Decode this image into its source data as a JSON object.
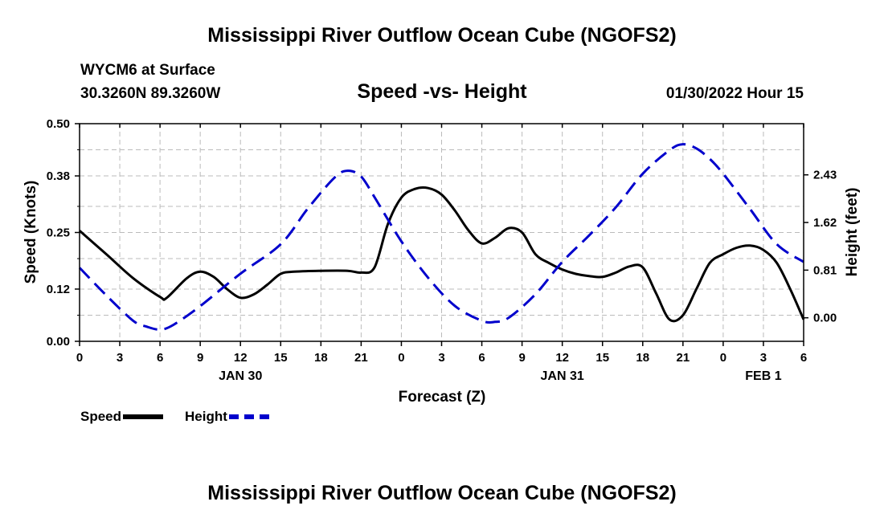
{
  "page": {
    "title": "Mississippi River Outflow Ocean Cube (NGOFS2)",
    "footer_title": "Mississippi River Outflow Ocean Cube (NGOFS2)",
    "station": "WYCM6 at Surface",
    "coordinates": "30.3260N  89.3260W",
    "subtitle": "Speed -vs- Height",
    "datetime": "01/30/2022 Hour 15"
  },
  "chart_data": {
    "type": "line",
    "title": "Speed -vs- Height",
    "xlabel": "Forecast (Z)",
    "ylabel_left": "Speed (Knots)",
    "ylabel_right": "Height (feet)",
    "x_unit": "hours from 00Z Jan 30",
    "xlim": [
      0,
      54
    ],
    "x_ticks": [
      0,
      3,
      6,
      9,
      12,
      15,
      18,
      21,
      24,
      27,
      30,
      33,
      36,
      39,
      42,
      45,
      48,
      51,
      54
    ],
    "x_tick_labels": [
      "0",
      "3",
      "6",
      "9",
      "12",
      "15",
      "18",
      "21",
      "0",
      "3",
      "6",
      "9",
      "12",
      "15",
      "18",
      "21",
      "0",
      "3",
      "6"
    ],
    "date_labels": [
      {
        "x": 12,
        "label": "JAN 30"
      },
      {
        "x": 36,
        "label": "JAN 31"
      },
      {
        "x": 51,
        "label": "FEB 1"
      }
    ],
    "y_left": {
      "lim": [
        0,
        0.5
      ],
      "ticks": [
        0.0,
        0.12,
        0.25,
        0.38,
        0.5
      ],
      "tick_labels": [
        "0.00",
        "0.12",
        "0.25",
        "0.38",
        "0.50"
      ]
    },
    "y_right": {
      "lim": [
        -0.4,
        3.3
      ],
      "ticks": [
        0.0,
        0.81,
        1.62,
        2.43
      ],
      "tick_labels": [
        "0.00",
        "0.81",
        "1.62",
        "2.43"
      ]
    },
    "grid": true,
    "legend_position": "bottom-left",
    "series": [
      {
        "name": "Speed",
        "axis": "left",
        "color": "#000000",
        "style": "solid",
        "x": [
          0,
          2,
          4,
          6,
          6.5,
          8,
          9,
          10,
          11,
          12,
          13,
          14,
          15,
          16,
          18,
          20,
          21,
          22,
          23,
          24,
          25,
          26,
          27,
          28,
          29,
          30,
          31,
          32,
          33,
          34,
          35,
          36,
          37,
          38,
          39,
          40,
          41,
          42,
          43,
          44,
          45,
          46,
          47,
          48,
          49,
          50,
          51,
          52,
          53,
          54
        ],
        "values": [
          0.254,
          0.2,
          0.145,
          0.102,
          0.1,
          0.145,
          0.16,
          0.148,
          0.12,
          0.1,
          0.108,
          0.13,
          0.155,
          0.16,
          0.162,
          0.162,
          0.158,
          0.17,
          0.27,
          0.33,
          0.35,
          0.352,
          0.337,
          0.3,
          0.255,
          0.225,
          0.238,
          0.26,
          0.25,
          0.2,
          0.18,
          0.165,
          0.155,
          0.15,
          0.148,
          0.158,
          0.172,
          0.17,
          0.11,
          0.05,
          0.06,
          0.12,
          0.18,
          0.2,
          0.215,
          0.22,
          0.21,
          0.18,
          0.12,
          0.05
        ]
      },
      {
        "name": "Height",
        "axis": "right",
        "color": "#0000cc",
        "style": "dashed",
        "x": [
          0,
          2,
          4,
          5,
          6,
          7,
          9,
          12,
          15,
          17,
          19,
          20,
          21,
          22,
          24,
          26,
          28,
          30,
          31,
          32,
          34,
          36,
          38,
          40,
          42,
          44,
          45,
          46,
          47,
          48,
          50,
          52,
          54
        ],
        "values": [
          0.85,
          0.38,
          -0.05,
          -0.15,
          -0.2,
          -0.12,
          0.2,
          0.75,
          1.25,
          1.85,
          2.38,
          2.5,
          2.4,
          2.05,
          1.3,
          0.68,
          0.2,
          -0.05,
          -0.07,
          0.0,
          0.4,
          0.95,
          1.4,
          1.88,
          2.45,
          2.85,
          2.95,
          2.88,
          2.7,
          2.45,
          1.85,
          1.25,
          0.95
        ]
      }
    ]
  }
}
